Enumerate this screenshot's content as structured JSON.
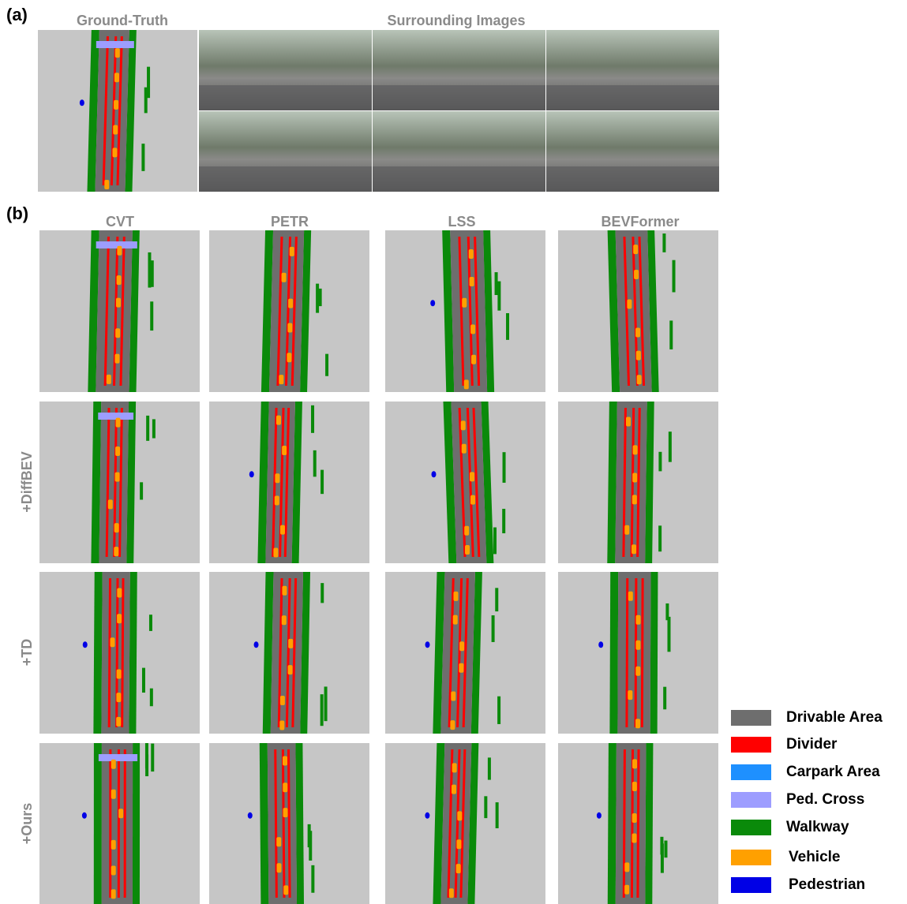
{
  "panel_a": {
    "label": "(a)",
    "ground_truth_title": "Ground-Truth",
    "surrounding_title": "Surrounding Images"
  },
  "panel_b": {
    "label": "(b)",
    "columns": [
      "CVT",
      "PETR",
      "LSS",
      "BEVFormer"
    ],
    "rows": [
      "+DiffBEV",
      "+TD",
      "+Ours"
    ]
  },
  "legend": [
    {
      "name": "Drivable Area",
      "color": "#6e6e6e"
    },
    {
      "name": "Divider",
      "color": "#ff0000"
    },
    {
      "name": "Carpark Area",
      "color": "#1e90ff"
    },
    {
      "name": "Ped. Cross",
      "color": "#9d9dff"
    },
    {
      "name": "Walkway",
      "color": "#0a8a0a"
    },
    {
      "name": "Vehicle",
      "color": "#ffa000"
    },
    {
      "name": "Pedestrian",
      "color": "#0000e6"
    }
  ]
}
